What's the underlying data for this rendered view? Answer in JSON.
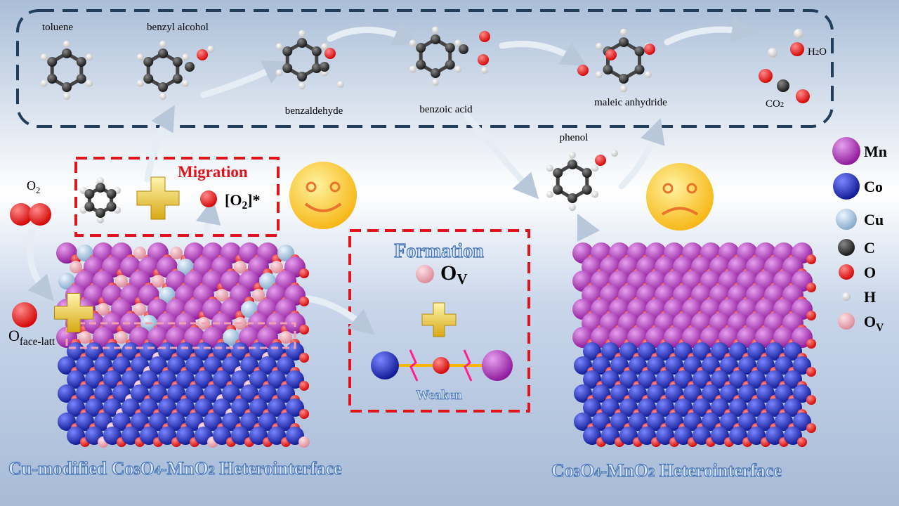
{
  "pathway": {
    "molecules": [
      "toluene",
      "benzyl alcohol",
      "benzaldehyde",
      "benzoic acid",
      "maleic anhydride"
    ],
    "water": {
      "base": "H",
      "sub": "2",
      "tail": "O"
    },
    "co2": {
      "base": "CO",
      "sub": "2"
    },
    "phenol": "phenol"
  },
  "migration_box": {
    "title": "Migration",
    "adsorbed": {
      "open": "[O",
      "sub": "2",
      "close": "]*"
    }
  },
  "oxygen": {
    "gas": {
      "base": "O",
      "sub": "2"
    },
    "lattice": {
      "base": "O",
      "sub": "face-latt"
    }
  },
  "formation_box": {
    "title": "Formation",
    "vacancy": {
      "base": "O",
      "sub": "V"
    },
    "bond": "Weaken"
  },
  "legend": [
    {
      "label": "Mn"
    },
    {
      "label": "Co"
    },
    {
      "label": "Cu"
    },
    {
      "label": "C"
    },
    {
      "label": "O"
    },
    {
      "label": "H"
    },
    {
      "label": "O",
      "sub": "V"
    }
  ],
  "captions": {
    "left": [
      "Cu-modified Co",
      "3",
      "O",
      "4",
      "-MnO",
      "2",
      " Heterointerface"
    ],
    "right": [
      "Co",
      "3",
      "O",
      "4",
      "-MnO",
      "2",
      " Heterointerface"
    ]
  }
}
